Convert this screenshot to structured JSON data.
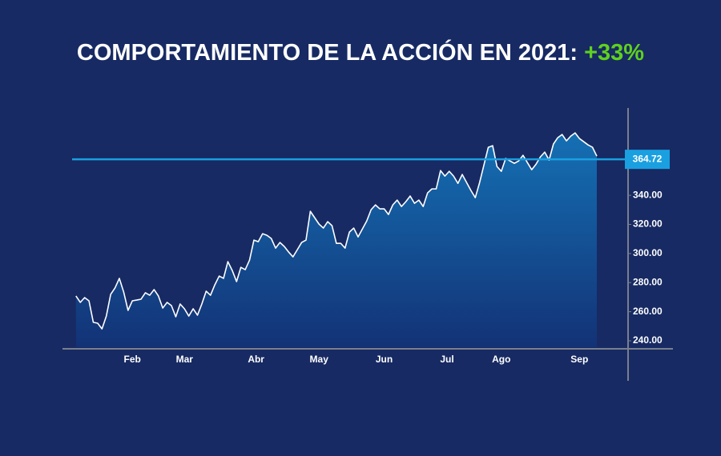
{
  "chart_data": {
    "type": "area",
    "title": "COMPORTAMIENTO DE LA ACCIÓN EN 2021:",
    "title_highlight": "+33%",
    "series": [
      {
        "color": "#ffffff",
        "values": [
          270.8,
          266.4,
          269.7,
          267.5,
          252.7,
          252.1,
          248.2,
          257.0,
          271.9,
          276.3,
          282.9,
          273.5,
          260.9,
          267.5,
          268.0,
          268.6,
          273.0,
          271.3,
          275.2,
          270.8,
          262.5,
          266.4,
          264.2,
          256.5,
          265.3,
          262.0,
          257.0,
          262.0,
          257.6,
          265.3,
          274.1,
          271.3,
          278.5,
          284.5,
          282.9,
          294.4,
          288.4,
          280.7,
          290.5,
          288.9,
          295.5,
          309.2,
          308.1,
          313.6,
          312.5,
          310.3,
          303.7,
          307.6,
          304.8,
          301.0,
          297.7,
          302.6,
          307.6,
          309.2,
          329.0,
          324.6,
          320.2,
          317.5,
          321.9,
          319.1,
          307.0,
          307.0,
          303.7,
          314.7,
          317.5,
          311.4,
          316.9,
          322.4,
          330.1,
          333.4,
          330.7,
          330.7,
          326.8,
          333.4,
          336.7,
          332.3,
          335.6,
          339.5,
          334.5,
          336.7,
          332.3,
          341.6,
          344.4,
          344.4,
          357.0,
          353.2,
          356.5,
          353.2,
          348.2,
          354.3,
          348.8,
          343.3,
          338.4,
          348.8,
          360.9,
          373.0,
          374.1,
          359.8,
          356.5,
          365.3,
          363.6,
          362.0,
          363.6,
          367.5,
          362.5,
          357.6,
          361.4,
          366.4,
          369.7,
          364.2,
          375.2,
          379.6,
          381.8,
          377.4,
          380.7,
          382.9,
          379.0,
          376.8,
          374.6,
          373.0,
          366.9
        ]
      }
    ],
    "xlim": [
      -3.1,
      127.2
    ],
    "xticks": [
      {
        "value": 13,
        "label": "Feb"
      },
      {
        "value": 25,
        "label": "Mar"
      },
      {
        "value": 41.5,
        "label": "Abr"
      },
      {
        "value": 56,
        "label": "May"
      },
      {
        "value": 71,
        "label": "Jun"
      },
      {
        "value": 85.5,
        "label": "Jul"
      },
      {
        "value": 98,
        "label": "Ago"
      },
      {
        "value": 116,
        "label": "Sep"
      }
    ],
    "ylim": [
      234.5,
      400
    ],
    "yticks": [
      {
        "value": 240,
        "label": "240.00"
      },
      {
        "value": 260,
        "label": "260.00"
      },
      {
        "value": 280,
        "label": "280.00"
      },
      {
        "value": 300,
        "label": "300.00"
      },
      {
        "value": 320,
        "label": "320.00"
      },
      {
        "value": 340,
        "label": "340.00"
      }
    ],
    "reference_line": {
      "value": 364.72,
      "color": "#1aa0e0"
    }
  }
}
